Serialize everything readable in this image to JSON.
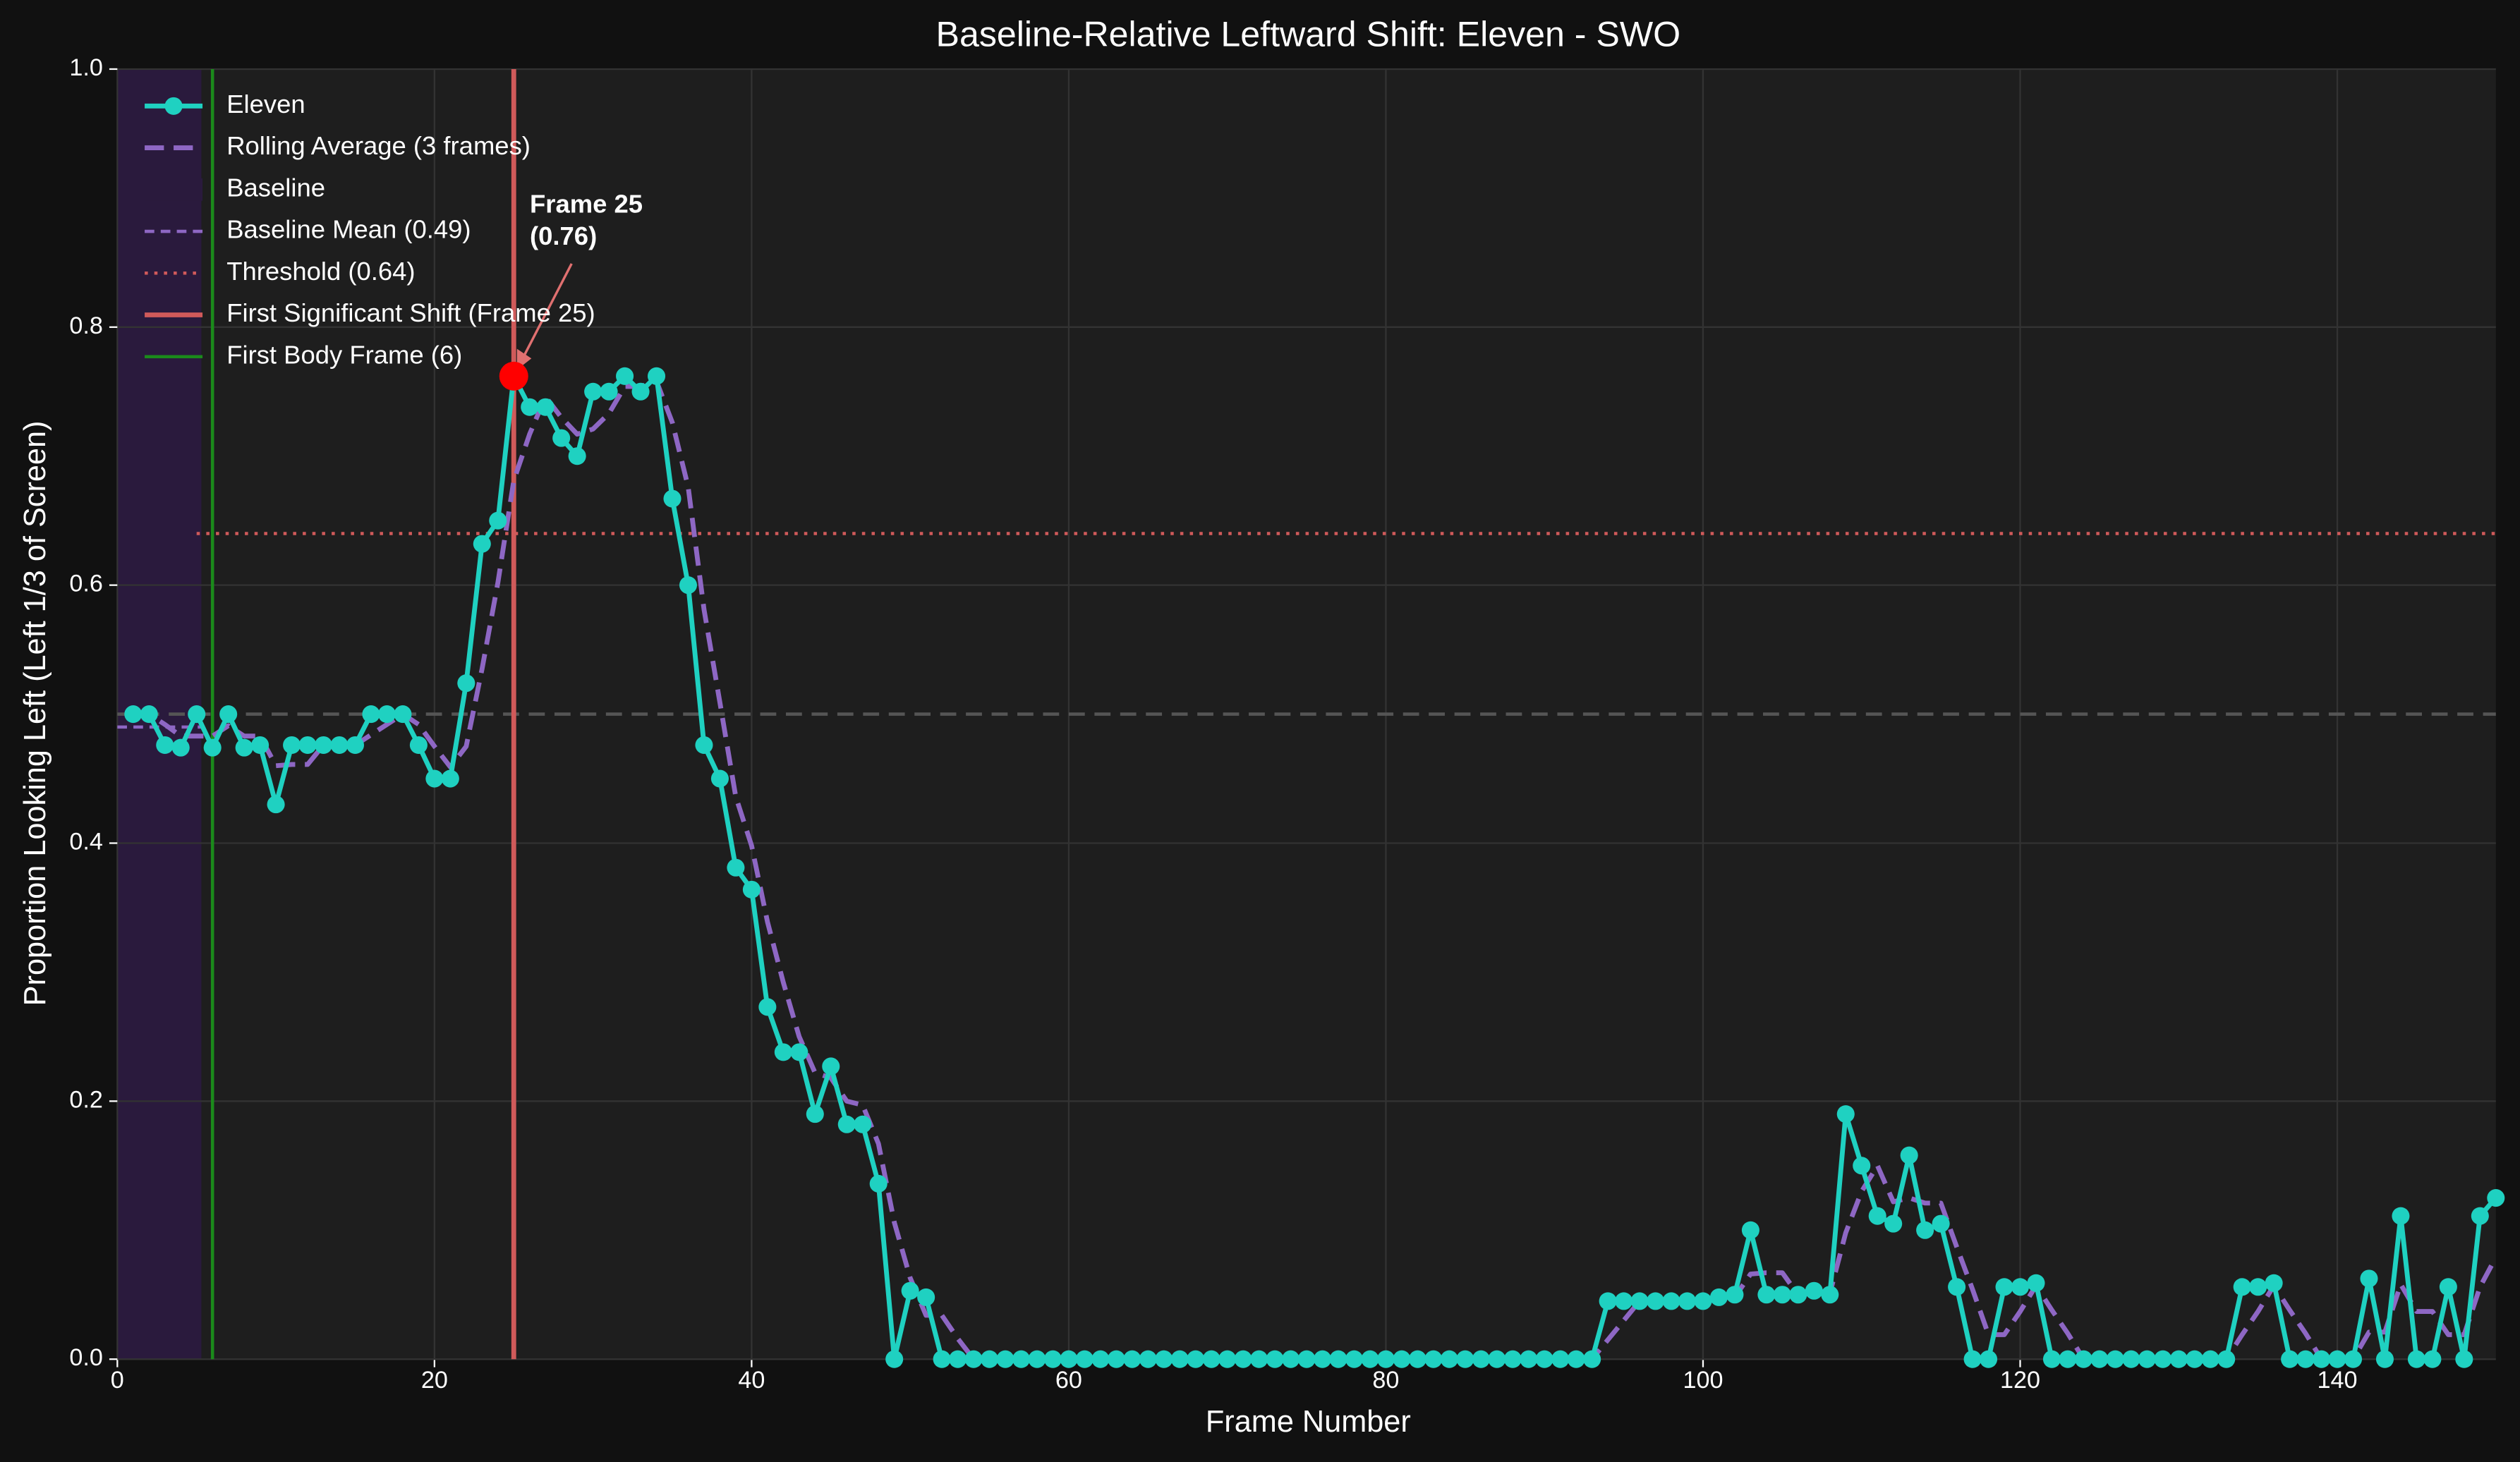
{
  "chart_data": {
    "type": "line",
    "title": "Baseline-Relative Leftward Shift: Eleven - SWO",
    "xlabel": "Frame Number",
    "ylabel": "Proportion Looking Left (Left 1/3 of Screen)",
    "x": [
      1,
      2,
      3,
      4,
      5,
      6,
      7,
      8,
      9,
      10,
      11,
      12,
      13,
      14,
      15,
      16,
      17,
      18,
      19,
      20,
      21,
      22,
      23,
      24,
      25,
      26,
      27,
      28,
      29,
      30,
      31,
      32,
      33,
      34,
      35,
      36,
      37,
      38,
      39,
      40,
      41,
      42,
      43,
      44,
      45,
      46,
      47,
      48,
      49,
      50,
      51,
      52,
      53,
      54,
      55,
      56,
      57,
      58,
      59,
      60,
      61,
      62,
      63,
      64,
      65,
      66,
      67,
      68,
      69,
      70,
      71,
      72,
      73,
      74,
      75,
      76,
      77,
      78,
      79,
      80,
      81,
      82,
      83,
      84,
      85,
      86,
      87,
      88,
      89,
      90,
      91,
      92,
      93,
      94,
      95,
      96,
      97,
      98,
      99,
      100,
      101,
      102,
      103,
      104,
      105,
      106,
      107,
      108,
      109,
      110,
      111,
      112,
      113,
      114,
      115,
      116,
      117,
      118,
      119,
      120,
      121,
      122,
      123,
      124,
      125,
      126,
      127,
      128,
      129,
      130,
      131,
      132,
      133,
      134,
      135,
      136,
      137,
      138,
      139,
      140,
      141,
      142,
      143,
      144,
      145,
      146,
      147,
      148,
      149,
      150
    ],
    "series": [
      {
        "name": "Eleven",
        "color": "#1fd1c1",
        "marker": true,
        "dash": false,
        "values": [
          0.5,
          0.5,
          0.476,
          0.474,
          0.5,
          0.474,
          0.5,
          0.474,
          0.476,
          0.43,
          0.476,
          0.476,
          0.476,
          0.476,
          0.476,
          0.5,
          0.5,
          0.5,
          0.476,
          0.45,
          0.45,
          0.524,
          0.632,
          0.65,
          0.762,
          0.738,
          0.738,
          0.714,
          0.7,
          0.75,
          0.75,
          0.762,
          0.75,
          0.762,
          0.667,
          0.6,
          0.476,
          0.45,
          0.381,
          0.364,
          0.273,
          0.238,
          0.238,
          0.19,
          0.227,
          0.182,
          0.182,
          0.136,
          0,
          0.053,
          0.048,
          0,
          0,
          0,
          0,
          0,
          0,
          0,
          0,
          0,
          0,
          0,
          0,
          0,
          0,
          0,
          0,
          0,
          0,
          0,
          0,
          0,
          0,
          0,
          0,
          0,
          0,
          0,
          0,
          0,
          0,
          0,
          0,
          0,
          0,
          0,
          0,
          0,
          0,
          0,
          0,
          0,
          0,
          0.045,
          0.045,
          0.045,
          0.045,
          0.045,
          0.045,
          0.045,
          0.048,
          0.05,
          0.1,
          0.05,
          0.05,
          0.05,
          0.053,
          0.05,
          0.19,
          0.15,
          0.111,
          0.105,
          0.158,
          0.1,
          0.105,
          0.056,
          0,
          0,
          0.056,
          0.056,
          0.059,
          0,
          0,
          0,
          0,
          0,
          0,
          0,
          0,
          0,
          0,
          0,
          0,
          0.056,
          0.056,
          0.059,
          0,
          0,
          0,
          0,
          0,
          0.0625,
          0,
          0.111,
          0,
          0,
          0.056,
          0,
          0.111,
          0.125
        ]
      },
      {
        "name": "Rolling Average (3 frames)",
        "color": "#8e67c4",
        "marker": false,
        "dash": true,
        "values": [
          0.5,
          0.5,
          0.492,
          0.483,
          0.483,
          0.483,
          0.491,
          0.483,
          0.483,
          0.46,
          0.461,
          0.461,
          0.476,
          0.476,
          0.476,
          0.484,
          0.492,
          0.5,
          0.492,
          0.475,
          0.459,
          0.475,
          0.535,
          0.602,
          0.681,
          0.717,
          0.746,
          0.73,
          0.717,
          0.721,
          0.733,
          0.754,
          0.754,
          0.758,
          0.726,
          0.676,
          0.581,
          0.509,
          0.436,
          0.398,
          0.339,
          0.292,
          0.25,
          0.222,
          0.218,
          0.2,
          0.197,
          0.167,
          0.106,
          0.063,
          0.034,
          0.034,
          0.016,
          0,
          0,
          0,
          0,
          0,
          0,
          0,
          0,
          0,
          0,
          0,
          0,
          0,
          0,
          0,
          0,
          0,
          0,
          0,
          0,
          0,
          0,
          0,
          0,
          0,
          0,
          0,
          0,
          0,
          0,
          0,
          0,
          0,
          0,
          0,
          0,
          0,
          0,
          0,
          0,
          0.015,
          0.03,
          0.045,
          0.045,
          0.045,
          0.045,
          0.045,
          0.046,
          0.048,
          0.066,
          0.067,
          0.067,
          0.05,
          0.051,
          0.051,
          0.098,
          0.13,
          0.15,
          0.122,
          0.125,
          0.121,
          0.121,
          0.087,
          0.054,
          0.019,
          0.019,
          0.037,
          0.057,
          0.038,
          0.02,
          0,
          0,
          0,
          0,
          0,
          0,
          0,
          0,
          0,
          0,
          0.019,
          0.037,
          0.057,
          0.038,
          0.02,
          0,
          0,
          0,
          0.021,
          0.021,
          0.058,
          0.037,
          0.037,
          0.019,
          0.019,
          0.056,
          0.079
        ]
      }
    ],
    "baseline": {
      "name": "Baseline",
      "xlim": [
        0,
        5.3
      ],
      "color": "#2a1a3d"
    },
    "baseline_mean": {
      "name": "Baseline Mean (0.49)",
      "value": 0.49,
      "xlim": [
        0,
        5.3
      ],
      "color": "#8e67c4"
    },
    "reference_line": {
      "value": 0.5,
      "color": "#555555"
    },
    "threshold": {
      "name": "Threshold (0.64)",
      "value": 0.64,
      "xlim": [
        5,
        150
      ],
      "color": "#d05a5a"
    },
    "first_shift": {
      "name": "First Significant Shift (Frame 25)",
      "x": 25,
      "color": "#d05a5a"
    },
    "first_body": {
      "name": "First Body Frame (6)",
      "x": 6,
      "color": "#1b8a1b"
    },
    "annotation": {
      "text": [
        "Frame 25",
        "(0.76)"
      ],
      "x": 25,
      "color": "#ff0000"
    },
    "xlim": [
      0,
      150
    ],
    "ylim": [
      0,
      1
    ],
    "xticks": [
      0,
      20,
      40,
      60,
      80,
      100,
      120,
      140
    ],
    "yticks": [
      {
        "value": 0,
        "label": "0.0"
      },
      0.2,
      0.4,
      0.6,
      0.8,
      {
        "value": 1,
        "label": "1.0"
      }
    ],
    "grid": true
  }
}
